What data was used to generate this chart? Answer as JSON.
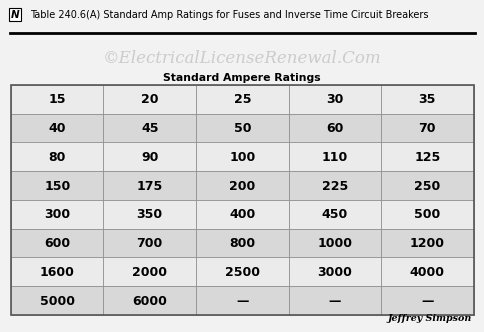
{
  "title_n": "N",
  "title_rest": "Table 240.6(A) Standard Amp Ratings for Fuses and Inverse Time Circuit Breakers",
  "watermark": "©ElectricalLicenseRenewal.Com",
  "subtitle": "Standard Ampere Ratings",
  "signature": "Jeffrey Simpson",
  "table_data": [
    [
      "15",
      "20",
      "25",
      "30",
      "35"
    ],
    [
      "40",
      "45",
      "50",
      "60",
      "70"
    ],
    [
      "80",
      "90",
      "100",
      "110",
      "125"
    ],
    [
      "150",
      "175",
      "200",
      "225",
      "250"
    ],
    [
      "300",
      "350",
      "400",
      "450",
      "500"
    ],
    [
      "600",
      "700",
      "800",
      "1000",
      "1200"
    ],
    [
      "1600",
      "2000",
      "2500",
      "3000",
      "4000"
    ],
    [
      "5000",
      "6000",
      "—",
      "—",
      "—"
    ]
  ],
  "row_colors": [
    "#ebebeb",
    "#d8d8d8",
    "#ebebeb",
    "#d8d8d8",
    "#ebebeb",
    "#d8d8d8",
    "#ebebeb",
    "#d8d8d8"
  ],
  "bg_color": "#f2f2f2",
  "title_color": "#000000",
  "cell_text_color": "#000000",
  "watermark_color": "#cccccc",
  "subtitle_color": "#000000",
  "border_color": "#888888",
  "figsize": [
    4.74,
    3.26
  ],
  "dpi": 100
}
